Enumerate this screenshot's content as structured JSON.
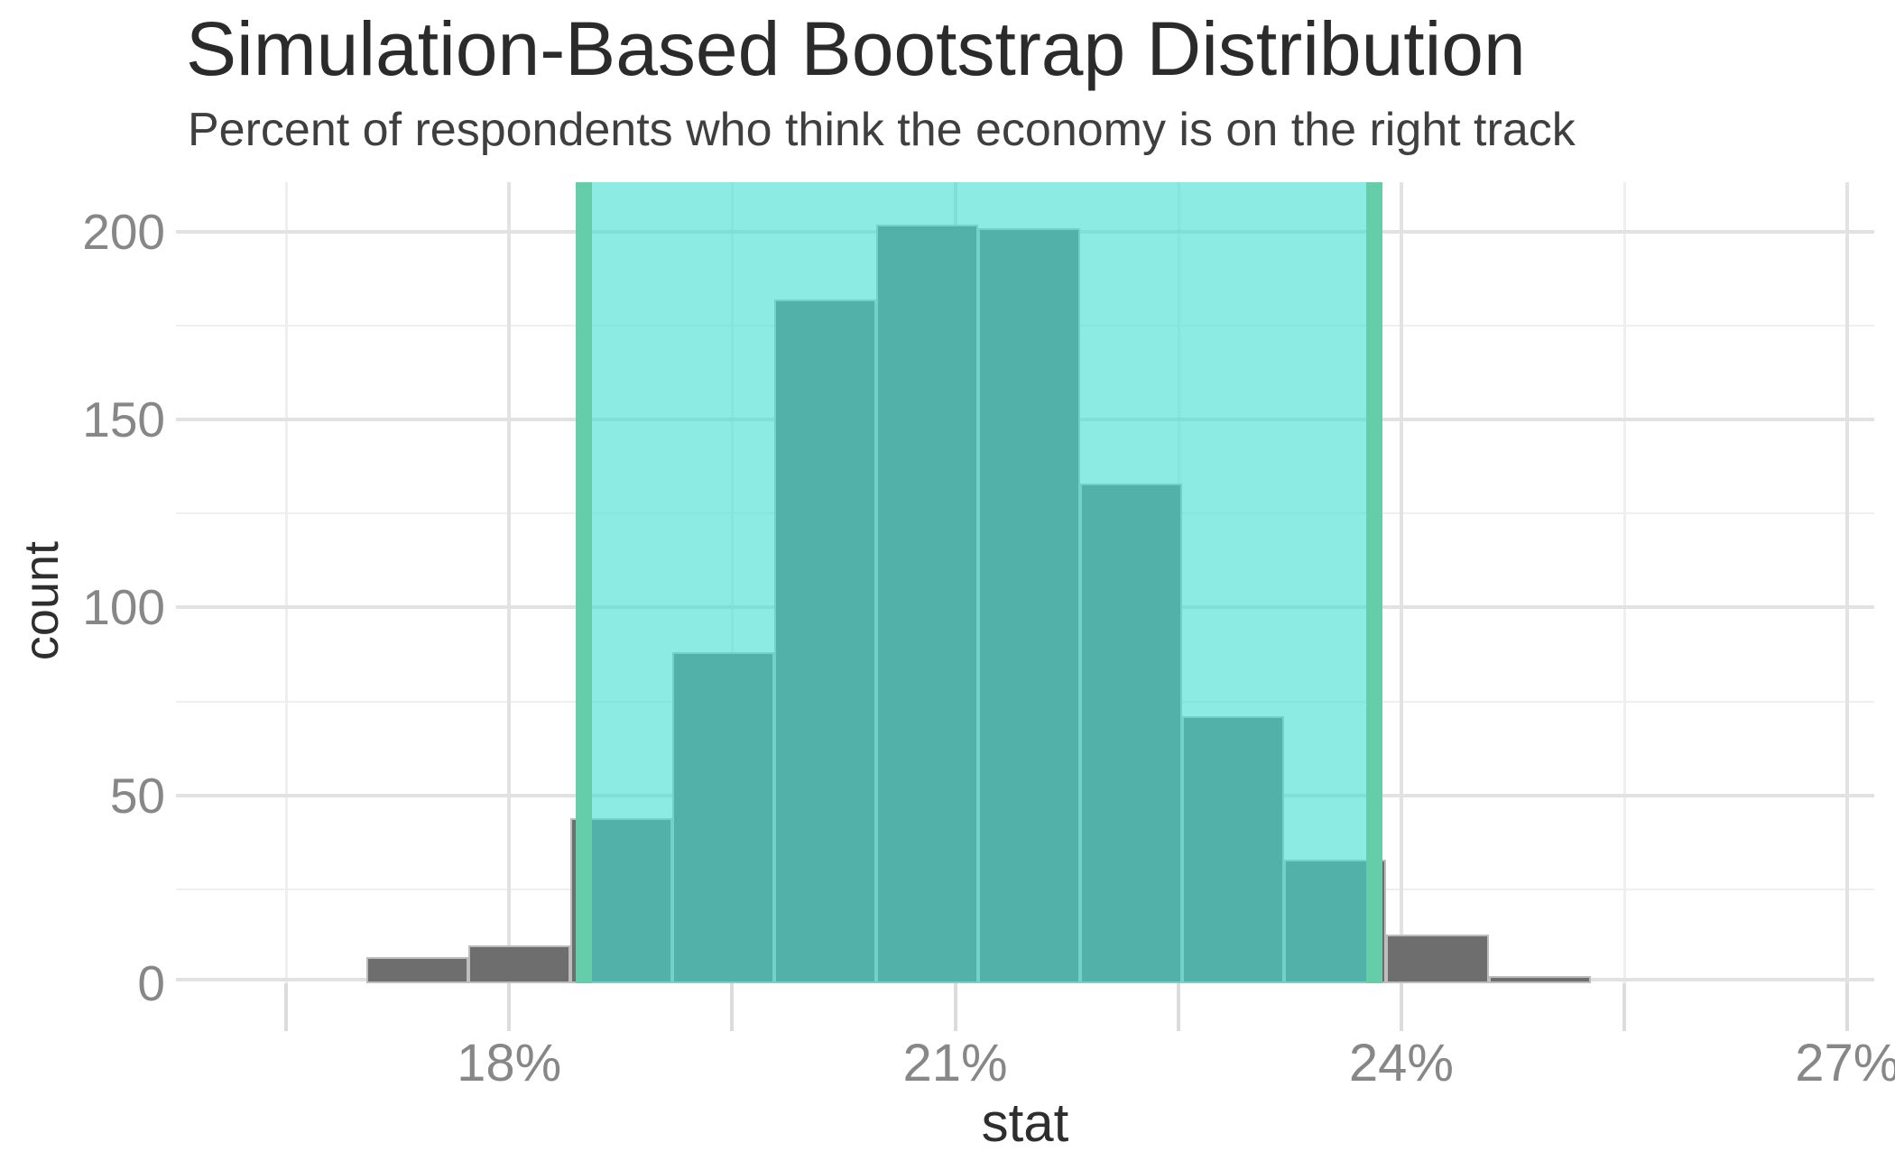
{
  "header": {
    "title": "Simulation-Based Bootstrap Distribution",
    "subtitle": "Percent of respondents who think the economy is on the right track"
  },
  "chart_data": {
    "type": "bar",
    "subtype": "histogram-with-confidence-interval-shading",
    "title": "Simulation-Based Bootstrap Distribution",
    "subtitle": "Percent of respondents who think the economy is on the right track",
    "xlabel": "stat",
    "ylabel": "count",
    "xlim": [
      15.76,
      27.18
    ],
    "ylim": [
      0,
      213.2
    ],
    "grid": "on",
    "x_axis": {
      "major_tick_values": [
        18,
        21,
        24,
        27
      ],
      "major_tick_labels": [
        "18%",
        "21%",
        "24%",
        "27%"
      ],
      "minor_tick_values": [
        16.5,
        19.5,
        22.5,
        25.5
      ]
    },
    "y_axis": {
      "major_tick_values": [
        0,
        50,
        100,
        150,
        200
      ],
      "major_tick_labels": [
        "0",
        "50",
        "100",
        "150",
        "200"
      ],
      "minor_tick_values": [
        25,
        75,
        125,
        175
      ]
    },
    "bins": {
      "note": "histogram bin edges in percent units, left edge to right edge",
      "edges_percent": [
        17.04,
        17.726,
        18.412,
        19.098,
        19.784,
        20.47,
        21.156,
        21.842,
        22.528,
        23.214,
        23.9,
        24.586,
        25.272
      ],
      "counts": [
        7,
        10,
        44,
        88,
        182,
        202,
        201,
        133,
        71,
        33,
        13,
        2
      ]
    },
    "confidence_interval": {
      "lower_percent": 18.5,
      "upper_percent": 23.82
    },
    "colors": {
      "bar_fill": "#6e6e6e",
      "shade_fill_rgba": "rgba(64,224,208,0.6)",
      "ci_line": "#66cdaa",
      "gridline_major": "#e2e2e2",
      "gridline_minor": "#efefef",
      "axis_text": "#878787",
      "title_text": "#2b2b2b"
    }
  }
}
